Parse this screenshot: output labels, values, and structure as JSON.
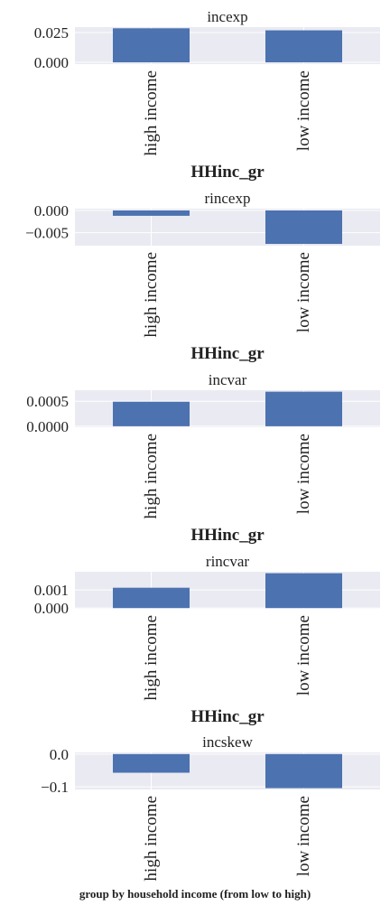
{
  "figure": {
    "caption": "group by household income (from low to high)",
    "panel_background": "#eaeaf2",
    "grid_color": "#ffffff",
    "bar_color": "#4c72b0"
  },
  "chart_data": [
    {
      "type": "bar",
      "title": "incexp",
      "xlabel": "HHinc_gr",
      "ylabel": "",
      "categories": [
        "high income",
        "low income"
      ],
      "values": [
        0.0285,
        0.0268
      ],
      "ylim": [
        -0.0015,
        0.0295
      ],
      "yticks": [
        0.0,
        0.025
      ],
      "ytick_labels": [
        "0.000",
        "0.025"
      ],
      "grid": true
    },
    {
      "type": "bar",
      "title": "rincexp",
      "xlabel": "HHinc_gr",
      "ylabel": "",
      "categories": [
        "high income",
        "low income"
      ],
      "values": [
        -0.0012,
        -0.0075
      ],
      "ylim": [
        -0.0079,
        0.0004
      ],
      "yticks": [
        -0.005,
        0.0
      ],
      "ytick_labels": [
        "−0.005",
        "0.000"
      ],
      "grid": true
    },
    {
      "type": "bar",
      "title": "incvar",
      "xlabel": "HHinc_gr",
      "ylabel": "",
      "categories": [
        "high income",
        "low income"
      ],
      "values": [
        0.00049,
        0.00069
      ],
      "ylim": [
        -2e-05,
        0.00072
      ],
      "yticks": [
        0.0,
        0.0005
      ],
      "ytick_labels": [
        "0.0000",
        "0.0005"
      ],
      "grid": true
    },
    {
      "type": "bar",
      "title": "rincvar",
      "xlabel": "HHinc_gr",
      "ylabel": "",
      "categories": [
        "high income",
        "low income"
      ],
      "values": [
        0.00112,
        0.00192
      ],
      "ylim": [
        -4e-05,
        0.002
      ],
      "yticks": [
        0.0,
        0.001
      ],
      "ytick_labels": [
        "0.000",
        "0.001"
      ],
      "grid": true
    },
    {
      "type": "bar",
      "title": "incskew",
      "xlabel": "",
      "ylabel": "",
      "categories": [
        "high income",
        "low income"
      ],
      "values": [
        -0.057,
        -0.104
      ],
      "ylim": [
        -0.108,
        0.005
      ],
      "yticks": [
        -0.1,
        0.0
      ],
      "ytick_labels": [
        "−0.1",
        "0.0"
      ],
      "grid": true
    }
  ]
}
